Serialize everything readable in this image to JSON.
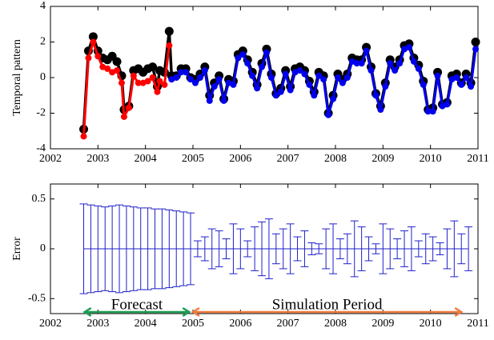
{
  "chart_data": [
    {
      "type": "line",
      "ylabel": "Temporal pattern",
      "xlim": [
        2002,
        2011
      ],
      "xticks": [
        2002,
        2003,
        2004,
        2005,
        2006,
        2007,
        2008,
        2009,
        2010,
        2011
      ],
      "ylim": [
        -4,
        4
      ],
      "yticks": [
        -4,
        -2,
        0,
        2,
        4
      ],
      "x": [
        2002.7,
        2002.8,
        2002.9,
        2003.0,
        2003.1,
        2003.2,
        2003.3,
        2003.4,
        2003.5,
        2003.55,
        2003.65,
        2003.75,
        2003.85,
        2003.95,
        2004.05,
        2004.15,
        2004.25,
        2004.3,
        2004.4,
        2004.5,
        2004.55,
        2004.65,
        2004.75,
        2004.85,
        2004.95,
        2005.05,
        2005.15,
        2005.25,
        2005.35,
        2005.45,
        2005.55,
        2005.65,
        2005.75,
        2005.85,
        2005.95,
        2006.05,
        2006.15,
        2006.25,
        2006.35,
        2006.45,
        2006.55,
        2006.65,
        2006.75,
        2006.85,
        2006.95,
        2007.05,
        2007.15,
        2007.25,
        2007.35,
        2007.45,
        2007.55,
        2007.65,
        2007.75,
        2007.85,
        2007.95,
        2008.05,
        2008.15,
        2008.25,
        2008.35,
        2008.45,
        2008.55,
        2008.65,
        2008.75,
        2008.85,
        2008.95,
        2009.05,
        2009.15,
        2009.25,
        2009.35,
        2009.45,
        2009.55,
        2009.65,
        2009.75,
        2009.85,
        2009.95,
        2010.05,
        2010.15,
        2010.25,
        2010.35,
        2010.45,
        2010.55,
        2010.65,
        2010.75,
        2010.85,
        2010.95
      ],
      "series": [
        {
          "color": "#000000",
          "values": [
            -2.9,
            1.5,
            2.3,
            1.5,
            1.1,
            1.0,
            1.2,
            0.9,
            0.1,
            -1.8,
            -1.6,
            0.4,
            0.5,
            0.3,
            0.5,
            0.6,
            -0.5,
            0.4,
            0.3,
            2.6,
            0.1,
            0.1,
            0.5,
            0.5,
            0.0,
            -0.1,
            0.2,
            0.6,
            -1.0,
            -0.3,
            0.1,
            -1.2,
            -0.1,
            -0.2,
            1.3,
            1.5,
            1.0,
            0.3,
            -0.4,
            0.8,
            1.6,
            0.2,
            -0.9,
            -0.6,
            0.4,
            -0.5,
            0.5,
            0.6,
            0.4,
            -0.2,
            -0.8,
            0.3,
            0.1,
            -2.0,
            -1.0,
            0.2,
            -0.1,
            0.2,
            1.1,
            1.0,
            1.0,
            1.7,
            0.6,
            -0.9,
            -1.6,
            -0.3,
            1.0,
            0.6,
            1.0,
            1.8,
            1.9,
            1.1,
            0.7,
            -0.2,
            -1.8,
            -1.7,
            0.3,
            -1.5,
            -1.4,
            0.1,
            0.2,
            -0.3,
            0.2,
            -0.3,
            2.0
          ]
        },
        {
          "color": "#ff0000",
          "values": [
            -3.3,
            1.1,
            2.0,
            1.2,
            0.6,
            0.5,
            0.3,
            0.4,
            -0.3,
            -2.2,
            -1.7,
            0.1,
            -0.3,
            -0.3,
            -0.2,
            0.0,
            -0.8,
            -0.2,
            -0.4,
            1.8,
            null,
            null,
            null,
            null,
            null,
            null,
            null,
            null,
            null,
            null,
            null,
            null,
            null,
            null,
            null,
            null,
            null,
            null,
            null,
            null,
            null,
            null,
            null,
            null,
            null,
            null,
            null,
            null,
            null,
            null,
            null,
            null,
            null,
            null,
            null,
            null,
            null,
            null,
            null,
            null,
            null,
            null,
            null,
            null,
            null,
            null,
            null,
            null,
            null,
            null,
            null,
            null,
            null,
            null,
            null,
            null,
            null,
            null,
            null,
            null,
            null,
            null,
            null,
            null,
            null
          ]
        },
        {
          "color": "#0000ee",
          "values": [
            null,
            null,
            null,
            null,
            null,
            null,
            null,
            null,
            null,
            null,
            null,
            null,
            null,
            null,
            null,
            null,
            null,
            null,
            null,
            null,
            -0.1,
            0.0,
            0.3,
            0.3,
            -0.1,
            -0.3,
            0.0,
            0.4,
            -1.3,
            -0.5,
            -0.1,
            -1.3,
            -0.3,
            -0.4,
            1.1,
            1.3,
            0.8,
            0.1,
            -0.6,
            0.6,
            1.4,
            0.0,
            -1.0,
            -0.8,
            0.2,
            -0.7,
            0.3,
            0.4,
            0.2,
            -0.4,
            -1.0,
            0.1,
            -0.1,
            -2.1,
            -1.2,
            0.0,
            -0.3,
            0.0,
            0.9,
            0.8,
            0.8,
            1.5,
            0.4,
            -1.0,
            -1.8,
            -0.5,
            0.8,
            0.4,
            0.8,
            1.6,
            1.7,
            0.9,
            0.5,
            -0.4,
            -1.9,
            -1.9,
            0.1,
            -1.6,
            -1.5,
            -0.1,
            0.0,
            -0.4,
            0.0,
            -0.5,
            1.6
          ]
        }
      ]
    },
    {
      "type": "errorbar",
      "ylabel": "Error",
      "xlim": [
        2002,
        2011
      ],
      "xticks": [
        2002,
        2003,
        2004,
        2005,
        2006,
        2007,
        2008,
        2009,
        2010,
        2011
      ],
      "ylim": [
        -0.65,
        0.65
      ],
      "yticks": [
        -0.5,
        0,
        0.5
      ],
      "x": [
        2002.7,
        2002.85,
        2003.0,
        2003.15,
        2003.3,
        2003.45,
        2003.6,
        2003.75,
        2003.9,
        2004.05,
        2004.2,
        2004.35,
        2004.5,
        2004.65,
        2004.8,
        2004.95,
        2005.1,
        2005.25,
        2005.4,
        2005.55,
        2005.7,
        2005.85,
        2006.0,
        2006.15,
        2006.3,
        2006.45,
        2006.6,
        2006.75,
        2006.9,
        2007.05,
        2007.2,
        2007.35,
        2007.5,
        2007.65,
        2007.8,
        2007.95,
        2008.1,
        2008.25,
        2008.4,
        2008.55,
        2008.7,
        2008.85,
        2009.0,
        2009.15,
        2009.3,
        2009.45,
        2009.6,
        2009.75,
        2009.9,
        2010.05,
        2010.2,
        2010.35,
        2010.5,
        2010.65,
        2010.8
      ],
      "series": [
        {
          "color": "#2020cc",
          "values": [
            0,
            0,
            0,
            0,
            0,
            0,
            0,
            0,
            0,
            0,
            0,
            0,
            0,
            0,
            0,
            0,
            0,
            0,
            0,
            0,
            0,
            0,
            0,
            0,
            0,
            0,
            0,
            0,
            0,
            0,
            0,
            0,
            0,
            0,
            0,
            0,
            0,
            0,
            0,
            0,
            0,
            0,
            0,
            0,
            0,
            0,
            0,
            0,
            0,
            0,
            0,
            0,
            0,
            0,
            0
          ],
          "errors": [
            0.45,
            0.44,
            0.43,
            0.42,
            0.43,
            0.44,
            0.43,
            0.42,
            0.41,
            0.41,
            0.4,
            0.4,
            0.39,
            0.38,
            0.37,
            0.36,
            0.08,
            0.12,
            0.2,
            0.18,
            0.1,
            0.25,
            0.2,
            0.08,
            0.22,
            0.27,
            0.3,
            0.15,
            0.2,
            0.25,
            0.12,
            0.18,
            0.06,
            0.05,
            0.2,
            0.25,
            0.1,
            0.15,
            0.28,
            0.22,
            0.12,
            0.05,
            0.25,
            0.2,
            0.1,
            0.18,
            0.22,
            0.08,
            0.15,
            0.12,
            0.06,
            0.2,
            0.28,
            0.15,
            0.22
          ]
        }
      ],
      "annotations": [
        {
          "text": "Forecast",
          "color": "#1a9e50",
          "x": [
            2002.72,
            2004.92
          ]
        },
        {
          "text": "Simulation Period",
          "color": "#f07b3f",
          "x": [
            2005.0,
            2010.65
          ]
        }
      ]
    }
  ]
}
